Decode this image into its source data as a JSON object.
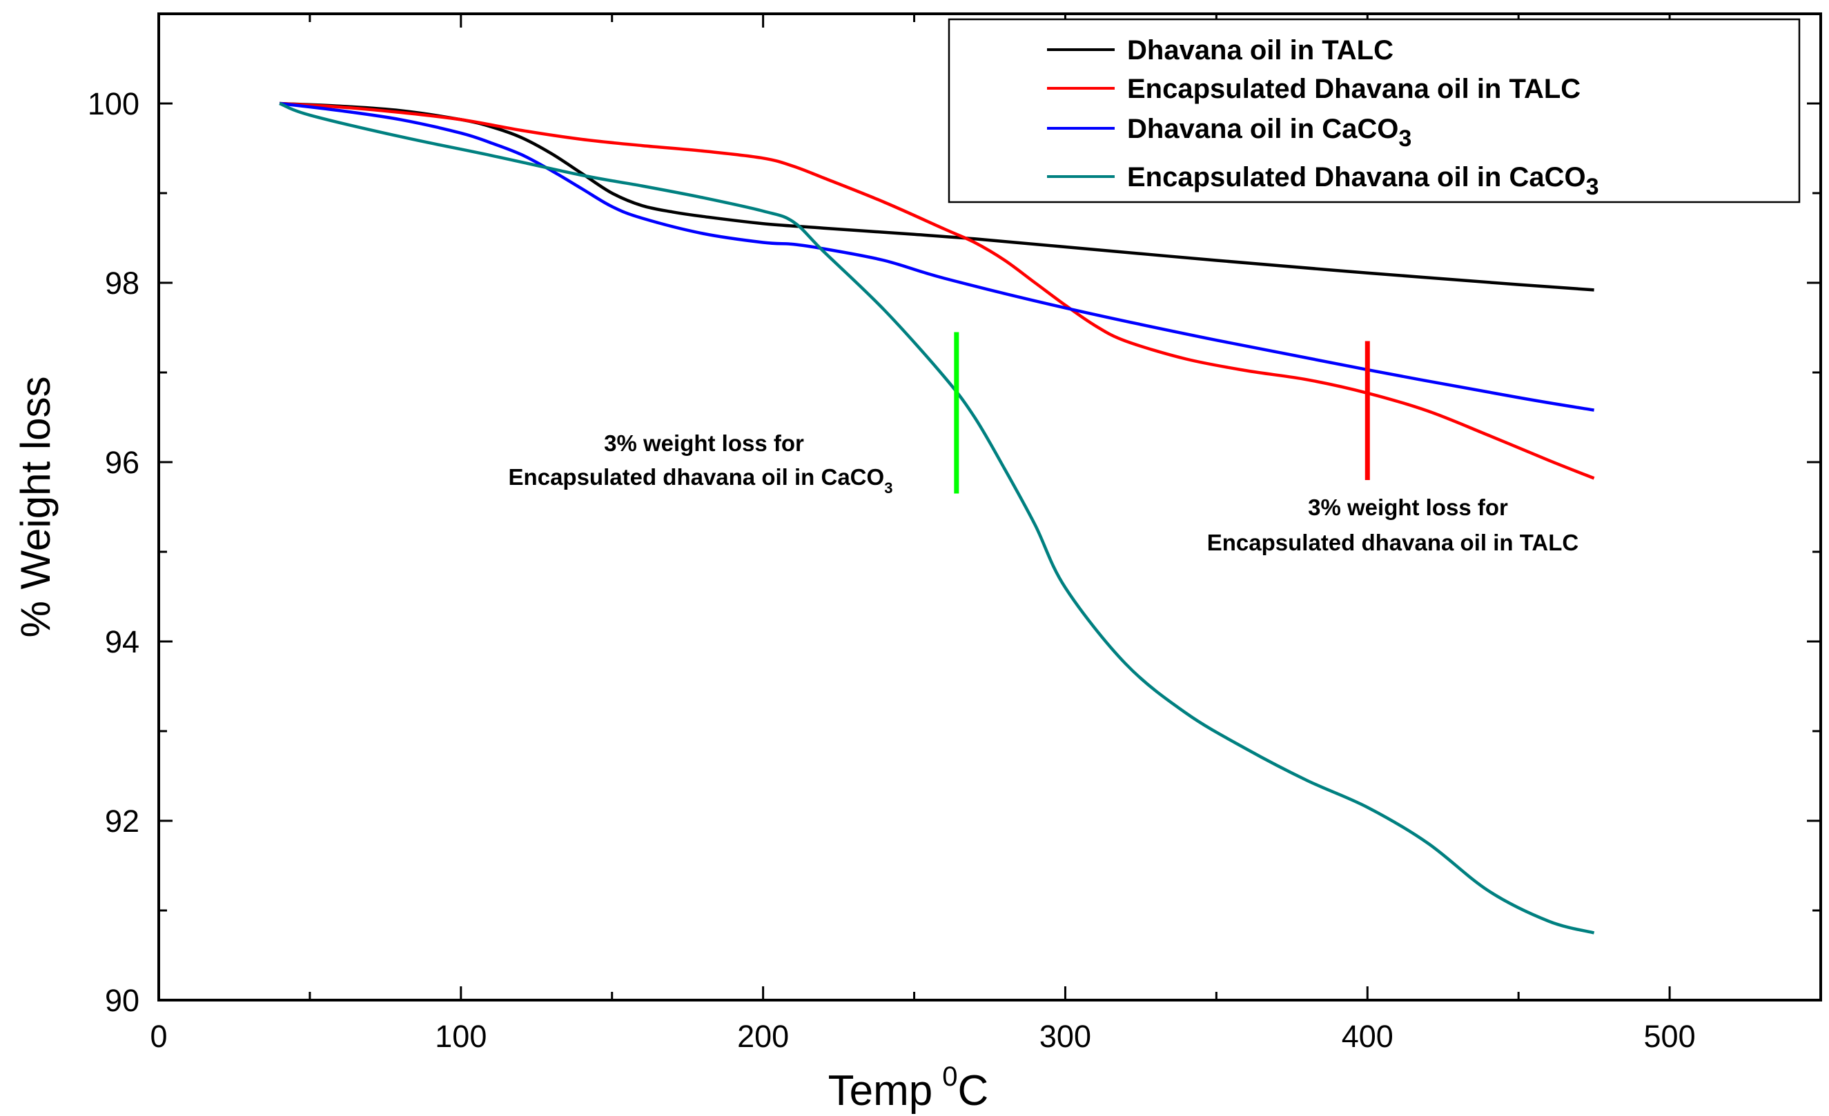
{
  "chart_data": {
    "type": "line",
    "title": "",
    "xlabel": "Temp",
    "xlabel_sup": "0",
    "xlabel_unit": "C",
    "ylabel": "% Weight loss",
    "xlim": [
      0,
      550
    ],
    "ylim": [
      90,
      101
    ],
    "xticks": [
      0,
      100,
      200,
      300,
      400,
      500
    ],
    "yticks": [
      90,
      92,
      94,
      96,
      98,
      100
    ],
    "legend_position": "top-right",
    "series": [
      {
        "name": "Dhavana oil in TALC",
        "color": "#000000",
        "x": [
          40,
          60,
          80,
          100,
          110,
          120,
          130,
          140,
          150,
          160,
          170,
          180,
          200,
          220,
          250,
          270,
          300,
          350,
          400,
          450,
          475
        ],
        "y": [
          100,
          99.97,
          99.92,
          99.82,
          99.74,
          99.62,
          99.44,
          99.22,
          99.0,
          98.86,
          98.79,
          98.74,
          98.66,
          98.61,
          98.54,
          98.49,
          98.4,
          98.25,
          98.11,
          97.98,
          97.92
        ]
      },
      {
        "name": "Encapsulated Dhavana oil in TALC",
        "color": "#ff0000",
        "x": [
          40,
          60,
          80,
          100,
          120,
          140,
          160,
          180,
          200,
          210,
          220,
          240,
          260,
          270,
          280,
          290,
          300,
          310,
          320,
          340,
          360,
          380,
          400,
          420,
          440,
          460,
          475
        ],
        "y": [
          100,
          99.96,
          99.9,
          99.82,
          99.7,
          99.6,
          99.53,
          99.47,
          99.39,
          99.3,
          99.17,
          98.9,
          98.6,
          98.45,
          98.25,
          98.0,
          97.75,
          97.52,
          97.35,
          97.15,
          97.02,
          96.92,
          96.77,
          96.57,
          96.3,
          96.02,
          95.82
        ]
      },
      {
        "name": "Dhavana oil in CaCO",
        "name_sub": "3",
        "color": "#0000ff",
        "x": [
          40,
          60,
          80,
          100,
          110,
          120,
          130,
          140,
          150,
          160,
          180,
          200,
          210,
          220,
          240,
          260,
          300,
          350,
          400,
          450,
          475
        ],
        "y": [
          100,
          99.92,
          99.82,
          99.67,
          99.56,
          99.43,
          99.25,
          99.05,
          98.85,
          98.72,
          98.55,
          98.45,
          98.43,
          98.38,
          98.25,
          98.05,
          97.72,
          97.36,
          97.03,
          96.72,
          96.58
        ]
      },
      {
        "name": "Encapsulated Dhavana oil in CaCO",
        "name_sub": "3",
        "color": "#008080",
        "x": [
          40,
          50,
          80,
          110,
          140,
          160,
          180,
          200,
          210,
          220,
          240,
          260,
          270,
          280,
          290,
          300,
          320,
          340,
          360,
          380,
          400,
          420,
          440,
          460,
          475
        ],
        "y": [
          100,
          99.87,
          99.63,
          99.42,
          99.2,
          99.08,
          98.95,
          98.8,
          98.68,
          98.35,
          97.7,
          96.95,
          96.5,
          95.92,
          95.3,
          94.6,
          93.75,
          93.2,
          92.8,
          92.45,
          92.15,
          91.75,
          91.22,
          90.88,
          90.75
        ]
      }
    ],
    "annotations": [
      {
        "line1": "3% weight loss for",
        "line2": "Encapsulated dhavana oil in CaCO",
        "line2_sub": "3",
        "marker_x": 264,
        "marker_y": [
          95.65,
          97.45
        ],
        "color": "#00ff00"
      },
      {
        "line1": "3% weight loss for",
        "line2": "Encapsulated dhavana oil in TALC",
        "marker_x": 400,
        "marker_y": [
          95.8,
          97.35
        ],
        "color": "#ff0000"
      }
    ]
  }
}
